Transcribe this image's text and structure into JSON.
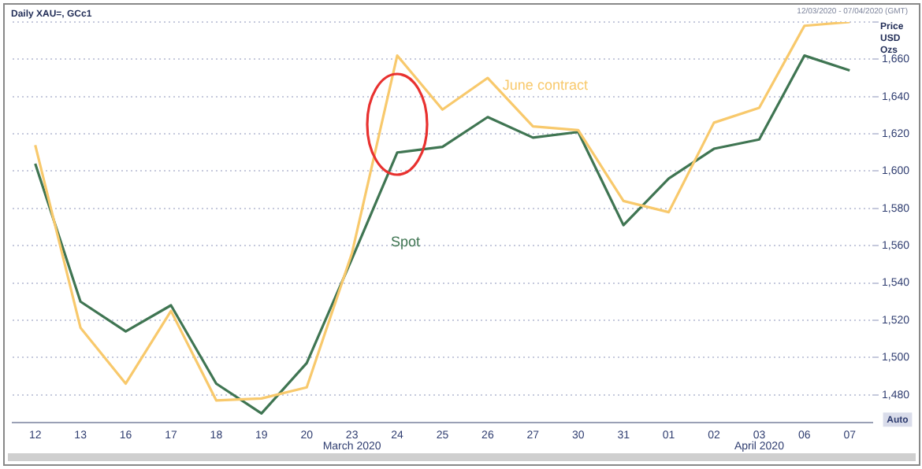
{
  "chart_data": {
    "type": "line",
    "title": "Daily XAU=, GCc1",
    "subtitle": "12/03/2020 - 07/04/2020 (GMT)",
    "ylabel": "Price USD Ozs",
    "categories": [
      "12",
      "13",
      "16",
      "17",
      "18",
      "19",
      "20",
      "23",
      "24",
      "25",
      "26",
      "27",
      "30",
      "31",
      "01",
      "02",
      "03",
      "06",
      "07"
    ],
    "series": [
      {
        "name": "June contract",
        "color": "#f8c96c",
        "values": [
          1614,
          1516,
          1486,
          1525,
          1477,
          1478,
          1484,
          1556,
          1662,
          1633,
          1650,
          1624,
          1622,
          1584,
          1578,
          1626,
          1634,
          1678,
          1680
        ]
      },
      {
        "name": "Spot",
        "color": "#3f7552",
        "values": [
          1604,
          1530,
          1514,
          1528,
          1486,
          1470,
          1497,
          1553,
          1610,
          1613,
          1629,
          1618,
          1621,
          1571,
          1596,
          1612,
          1617,
          1662,
          1654
        ]
      }
    ],
    "ylim": [
      1465,
      1680
    ],
    "yticks": [
      {
        "value": 1480,
        "label": "1,480"
      },
      {
        "value": 1500,
        "label": "1,500"
      },
      {
        "value": 1520,
        "label": "1,520"
      },
      {
        "value": 1540,
        "label": "1,540"
      },
      {
        "value": 1560,
        "label": "1,560"
      },
      {
        "value": 1580,
        "label": "1,580"
      },
      {
        "value": 1600,
        "label": "1,600"
      },
      {
        "value": 1620,
        "label": "1,620"
      },
      {
        "value": 1640,
        "label": "1,640"
      },
      {
        "value": 1660,
        "label": "1,660"
      },
      {
        "value": 1680,
        "label": null
      }
    ],
    "grid": "y",
    "legend": false,
    "marker": "none",
    "line_style": "solid",
    "annotations": [
      "March 2020",
      "April 2020",
      "Auto"
    ]
  }
}
